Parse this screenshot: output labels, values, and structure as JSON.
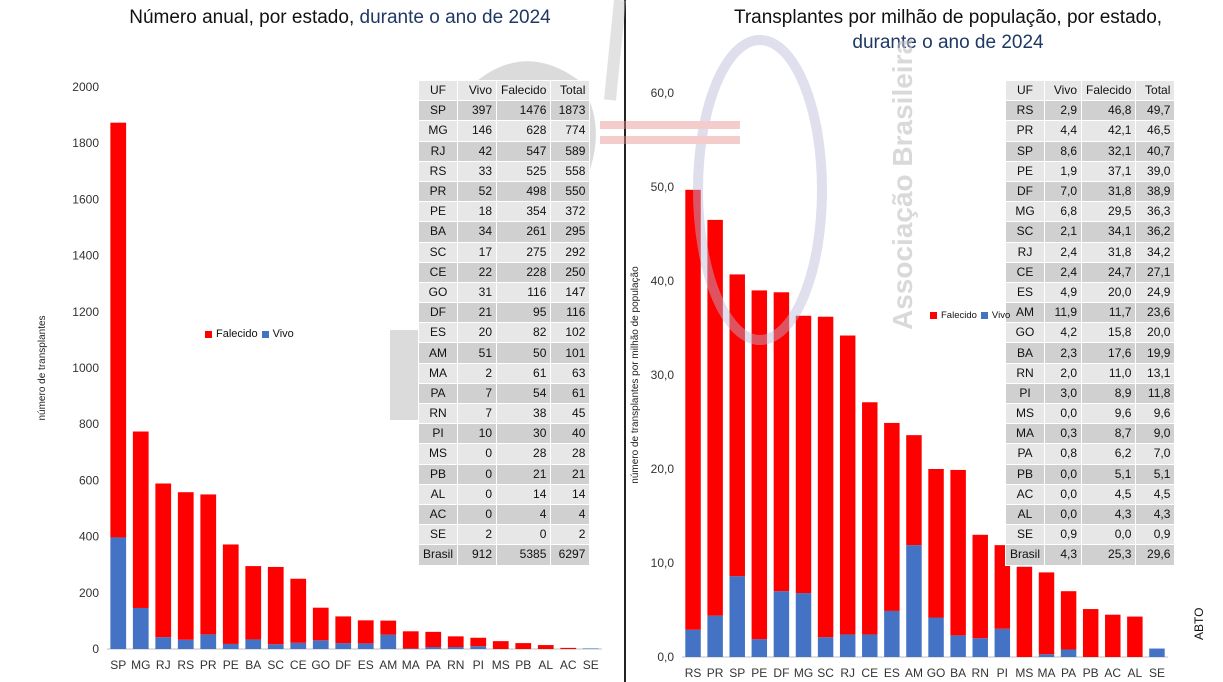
{
  "colors": {
    "vivo": "#4472c4",
    "falecido": "#ff0000",
    "watermark": "#c0c0c0",
    "watermark_red": "#e89090"
  },
  "left_title_part1": "Número anual, por estado,",
  "left_title_part2": "durante o ano de 2024",
  "right_title_part1": "Transplantes por milhão de população, por estado,",
  "right_title_part2": "durante o ano de 2024",
  "footer_label": "ABTO",
  "watermark_text": "Associação Brasileira",
  "chart_data": [
    {
      "type": "bar",
      "stacked": true,
      "title": "Número anual, por estado, durante o ano de 2024",
      "ylabel": "número de transplantes",
      "xlabel": "",
      "ylim": [
        0,
        2000
      ],
      "yticks": [
        "0",
        "200",
        "400",
        "600",
        "800",
        "1000",
        "1200",
        "1400",
        "1600",
        "1800",
        "2000"
      ],
      "legend": "center-left",
      "grid": false,
      "categories": [
        "SP",
        "MG",
        "RJ",
        "RS",
        "PR",
        "PE",
        "BA",
        "SC",
        "CE",
        "GO",
        "DF",
        "ES",
        "AM",
        "MA",
        "PA",
        "RN",
        "PI",
        "MS",
        "PB",
        "AL",
        "AC",
        "SE"
      ],
      "series": [
        {
          "name": "Vivo",
          "values": [
            397,
            146,
            42,
            33,
            52,
            18,
            34,
            17,
            22,
            31,
            21,
            20,
            51,
            2,
            7,
            7,
            10,
            0,
            0,
            0,
            0,
            2
          ]
        },
        {
          "name": "Falecido",
          "values": [
            1476,
            628,
            547,
            525,
            498,
            354,
            261,
            275,
            228,
            116,
            95,
            82,
            50,
            61,
            54,
            38,
            30,
            28,
            21,
            14,
            4,
            0
          ]
        }
      ],
      "table": {
        "columns": [
          "UF",
          "Vivo",
          "Falecido",
          "Total"
        ],
        "rows": [
          [
            "SP",
            "397",
            "1476",
            "1873"
          ],
          [
            "MG",
            "146",
            "628",
            "774"
          ],
          [
            "RJ",
            "42",
            "547",
            "589"
          ],
          [
            "RS",
            "33",
            "525",
            "558"
          ],
          [
            "PR",
            "52",
            "498",
            "550"
          ],
          [
            "PE",
            "18",
            "354",
            "372"
          ],
          [
            "BA",
            "34",
            "261",
            "295"
          ],
          [
            "SC",
            "17",
            "275",
            "292"
          ],
          [
            "CE",
            "22",
            "228",
            "250"
          ],
          [
            "GO",
            "31",
            "116",
            "147"
          ],
          [
            "DF",
            "21",
            "95",
            "116"
          ],
          [
            "ES",
            "20",
            "82",
            "102"
          ],
          [
            "AM",
            "51",
            "50",
            "101"
          ],
          [
            "MA",
            "2",
            "61",
            "63"
          ],
          [
            "PA",
            "7",
            "54",
            "61"
          ],
          [
            "RN",
            "7",
            "38",
            "45"
          ],
          [
            "PI",
            "10",
            "30",
            "40"
          ],
          [
            "MS",
            "0",
            "28",
            "28"
          ],
          [
            "PB",
            "0",
            "21",
            "21"
          ],
          [
            "AL",
            "0",
            "14",
            "14"
          ],
          [
            "AC",
            "0",
            "4",
            "4"
          ],
          [
            "SE",
            "2",
            "0",
            "2"
          ],
          [
            "Brasil",
            "912",
            "5385",
            "6297"
          ]
        ]
      }
    },
    {
      "type": "bar",
      "stacked": true,
      "title": "Transplantes por milhão de população, por estado, durante o ano de 2024",
      "ylabel": "número de transplantes por milhão de população",
      "xlabel": "",
      "ylim": [
        0,
        60
      ],
      "yticks": [
        "0,0",
        "10,0",
        "20,0",
        "30,0",
        "40,0",
        "50,0",
        "60,0"
      ],
      "legend": "center-right",
      "grid": false,
      "categories": [
        "RS",
        "PR",
        "SP",
        "PE",
        "DF",
        "MG",
        "SC",
        "RJ",
        "CE",
        "ES",
        "AM",
        "GO",
        "BA",
        "RN",
        "PI",
        "MS",
        "MA",
        "PA",
        "PB",
        "AC",
        "AL",
        "SE"
      ],
      "series": [
        {
          "name": "Vivo",
          "values": [
            2.9,
            4.4,
            8.6,
            1.9,
            7.0,
            6.8,
            2.1,
            2.4,
            2.4,
            4.9,
            11.9,
            4.2,
            2.3,
            2.0,
            3.0,
            0.0,
            0.3,
            0.8,
            0.0,
            0.0,
            0.0,
            0.9
          ]
        },
        {
          "name": "Falecido",
          "values": [
            46.8,
            42.1,
            32.1,
            37.1,
            31.8,
            29.5,
            34.1,
            31.8,
            24.7,
            20.0,
            11.7,
            15.8,
            17.6,
            11.0,
            8.9,
            9.6,
            8.7,
            6.2,
            5.1,
            4.5,
            4.3,
            0.0
          ]
        }
      ],
      "table": {
        "columns": [
          "UF",
          "Vivo",
          "Falecido",
          "Total"
        ],
        "rows": [
          [
            "RS",
            "2,9",
            "46,8",
            "49,7"
          ],
          [
            "PR",
            "4,4",
            "42,1",
            "46,5"
          ],
          [
            "SP",
            "8,6",
            "32,1",
            "40,7"
          ],
          [
            "PE",
            "1,9",
            "37,1",
            "39,0"
          ],
          [
            "DF",
            "7,0",
            "31,8",
            "38,9"
          ],
          [
            "MG",
            "6,8",
            "29,5",
            "36,3"
          ],
          [
            "SC",
            "2,1",
            "34,1",
            "36,2"
          ],
          [
            "RJ",
            "2,4",
            "31,8",
            "34,2"
          ],
          [
            "CE",
            "2,4",
            "24,7",
            "27,1"
          ],
          [
            "ES",
            "4,9",
            "20,0",
            "24,9"
          ],
          [
            "AM",
            "11,9",
            "11,7",
            "23,6"
          ],
          [
            "GO",
            "4,2",
            "15,8",
            "20,0"
          ],
          [
            "BA",
            "2,3",
            "17,6",
            "19,9"
          ],
          [
            "RN",
            "2,0",
            "11,0",
            "13,1"
          ],
          [
            "PI",
            "3,0",
            "8,9",
            "11,8"
          ],
          [
            "MS",
            "0,0",
            "9,6",
            "9,6"
          ],
          [
            "MA",
            "0,3",
            "8,7",
            "9,0"
          ],
          [
            "PA",
            "0,8",
            "6,2",
            "7,0"
          ],
          [
            "PB",
            "0,0",
            "5,1",
            "5,1"
          ],
          [
            "AC",
            "0,0",
            "4,5",
            "4,5"
          ],
          [
            "AL",
            "0,0",
            "4,3",
            "4,3"
          ],
          [
            "SE",
            "0,9",
            "0,0",
            "0,9"
          ],
          [
            "Brasil",
            "4,3",
            "25,3",
            "29,6"
          ]
        ]
      }
    }
  ]
}
